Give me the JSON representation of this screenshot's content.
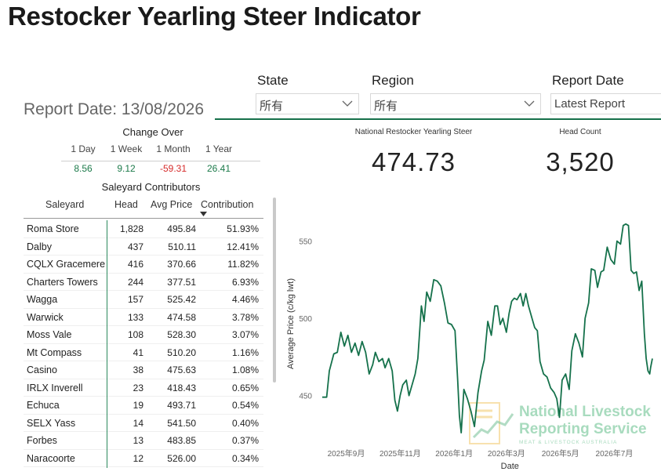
{
  "title": "Restocker Yearling Steer Indicator",
  "report_date_label": "Report Date: 13/08/2026",
  "filters": {
    "state": {
      "label": "State",
      "value": "所有"
    },
    "region": {
      "label": "Region",
      "value": "所有"
    },
    "report_date": {
      "label": "Report Date",
      "value": "Latest Report"
    }
  },
  "kpis": {
    "indicator": {
      "label": "National Restocker Yearling Steer",
      "value": "474.73"
    },
    "head_count": {
      "label": "Head Count",
      "value": "3,520"
    }
  },
  "change_over": {
    "title": "Change Over",
    "periods": [
      {
        "label": "1 Day",
        "value": "8.56",
        "status": "positive"
      },
      {
        "label": "1 Week",
        "value": "9.12",
        "status": "positive"
      },
      {
        "label": "1 Month",
        "value": "-59.31",
        "status": "negative"
      },
      {
        "label": "1 Year",
        "value": "26.41",
        "status": "positive"
      }
    ]
  },
  "contributors": {
    "title": "Saleyard Contributors",
    "columns": [
      "Saleyard",
      "Head",
      "Avg Price",
      "Contribution"
    ],
    "rows": [
      {
        "saleyard": "Roma Store",
        "head": "1,828",
        "avg_price": "495.84",
        "contribution": "51.93%"
      },
      {
        "saleyard": "Dalby",
        "head": "437",
        "avg_price": "510.11",
        "contribution": "12.41%"
      },
      {
        "saleyard": "CQLX Gracemere",
        "head": "416",
        "avg_price": "370.66",
        "contribution": "11.82%"
      },
      {
        "saleyard": "Charters Towers",
        "head": "244",
        "avg_price": "377.51",
        "contribution": "6.93%"
      },
      {
        "saleyard": "Wagga",
        "head": "157",
        "avg_price": "525.42",
        "contribution": "4.46%"
      },
      {
        "saleyard": "Warwick",
        "head": "133",
        "avg_price": "474.58",
        "contribution": "3.78%"
      },
      {
        "saleyard": "Moss Vale",
        "head": "108",
        "avg_price": "528.30",
        "contribution": "3.07%"
      },
      {
        "saleyard": "Mt Compass",
        "head": "41",
        "avg_price": "510.20",
        "contribution": "1.16%"
      },
      {
        "saleyard": "Casino",
        "head": "38",
        "avg_price": "475.63",
        "contribution": "1.08%"
      },
      {
        "saleyard": "IRLX Inverell",
        "head": "23",
        "avg_price": "418.43",
        "contribution": "0.65%"
      },
      {
        "saleyard": "Echuca",
        "head": "19",
        "avg_price": "493.71",
        "contribution": "0.54%"
      },
      {
        "saleyard": "SELX Yass",
        "head": "14",
        "avg_price": "541.50",
        "contribution": "0.40%"
      },
      {
        "saleyard": "Forbes",
        "head": "13",
        "avg_price": "483.85",
        "contribution": "0.37%"
      },
      {
        "saleyard": "Naracoorte",
        "head": "12",
        "avg_price": "526.00",
        "contribution": "0.34%"
      }
    ]
  },
  "colors": {
    "accent": "#16704a",
    "positive": "#1c7a4a",
    "negative": "#d62b2b",
    "line": "#15714b"
  },
  "watermark": {
    "line1": "National Livestock",
    "line2": "Reporting Service",
    "line3": "MEAT & LIVESTOCK AUSTRALIA"
  },
  "chart_data": {
    "type": "line",
    "xlabel": "Date",
    "ylabel": "Average Price (c/kg lwt)",
    "x_ticks": [
      "2025年9月",
      "2025年11月",
      "2026年1月",
      "2026年3月",
      "2026年5月",
      "2026年7月"
    ],
    "y_ticks": [
      450,
      500,
      550
    ],
    "ylim": [
      423,
      570
    ],
    "xlim": [
      "2025-08-05",
      "2026-08-13"
    ],
    "series": [
      {
        "values": [
          [
            "2025-08-05",
            449
          ],
          [
            "2025-08-10",
            449
          ],
          [
            "2025-08-13",
            466
          ],
          [
            "2025-08-18",
            477
          ],
          [
            "2025-08-22",
            478
          ],
          [
            "2025-08-26",
            491
          ],
          [
            "2025-08-30",
            482
          ],
          [
            "2025-09-03",
            489
          ],
          [
            "2025-09-07",
            478
          ],
          [
            "2025-09-11",
            484
          ],
          [
            "2025-09-15",
            476
          ],
          [
            "2025-09-19",
            485
          ],
          [
            "2025-09-23",
            478
          ],
          [
            "2025-09-27",
            464
          ],
          [
            "2025-10-01",
            470
          ],
          [
            "2025-10-04",
            478
          ],
          [
            "2025-10-08",
            472
          ],
          [
            "2025-10-12",
            474
          ],
          [
            "2025-10-15",
            468
          ],
          [
            "2025-10-19",
            474
          ],
          [
            "2025-10-23",
            466
          ],
          [
            "2025-10-26",
            447
          ],
          [
            "2025-10-29",
            440
          ],
          [
            "2025-11-01",
            450
          ],
          [
            "2025-11-04",
            457
          ],
          [
            "2025-11-08",
            460
          ],
          [
            "2025-11-11",
            450
          ],
          [
            "2025-11-14",
            456
          ],
          [
            "2025-11-18",
            464
          ],
          [
            "2025-11-21",
            474
          ],
          [
            "2025-11-25",
            508
          ],
          [
            "2025-11-28",
            498
          ],
          [
            "2025-12-01",
            517
          ],
          [
            "2025-12-05",
            511
          ],
          [
            "2025-12-09",
            525
          ],
          [
            "2025-12-13",
            524
          ],
          [
            "2025-12-17",
            521
          ],
          [
            "2025-12-21",
            510
          ],
          [
            "2025-12-25",
            497
          ],
          [
            "2025-12-29",
            496
          ],
          [
            "2026-01-02",
            492
          ],
          [
            "2026-01-05",
            460
          ],
          [
            "2026-01-07",
            437
          ],
          [
            "2026-01-09",
            426
          ],
          [
            "2026-01-12",
            454
          ],
          [
            "2026-01-16",
            448
          ],
          [
            "2026-01-20",
            440
          ],
          [
            "2026-01-24",
            430
          ],
          [
            "2026-01-28",
            452
          ],
          [
            "2026-02-01",
            466
          ],
          [
            "2026-02-04",
            473
          ],
          [
            "2026-02-08",
            498
          ],
          [
            "2026-02-12",
            489
          ],
          [
            "2026-02-16",
            508
          ],
          [
            "2026-02-19",
            508
          ],
          [
            "2026-02-22",
            496
          ],
          [
            "2026-02-25",
            500
          ],
          [
            "2026-03-01",
            491
          ],
          [
            "2026-03-04",
            503
          ],
          [
            "2026-03-07",
            511
          ],
          [
            "2026-03-10",
            513
          ],
          [
            "2026-03-13",
            512
          ],
          [
            "2026-03-17",
            516
          ],
          [
            "2026-03-20",
            508
          ],
          [
            "2026-03-23",
            516
          ],
          [
            "2026-03-26",
            508
          ],
          [
            "2026-03-30",
            500
          ],
          [
            "2026-04-02",
            494
          ],
          [
            "2026-04-05",
            492
          ],
          [
            "2026-04-08",
            472
          ],
          [
            "2026-04-12",
            464
          ],
          [
            "2026-04-16",
            462
          ],
          [
            "2026-04-20",
            455
          ],
          [
            "2026-04-24",
            452
          ],
          [
            "2026-04-27",
            448
          ],
          [
            "2026-04-30",
            436
          ],
          [
            "2026-05-03",
            460
          ],
          [
            "2026-05-07",
            464
          ],
          [
            "2026-05-11",
            454
          ],
          [
            "2026-05-14",
            479
          ],
          [
            "2026-05-18",
            490
          ],
          [
            "2026-05-22",
            484
          ],
          [
            "2026-05-26",
            475
          ],
          [
            "2026-05-29",
            500
          ],
          [
            "2026-06-02",
            510
          ],
          [
            "2026-06-05",
            532
          ],
          [
            "2026-06-09",
            531
          ],
          [
            "2026-06-12",
            520
          ],
          [
            "2026-06-16",
            530
          ],
          [
            "2026-06-19",
            531
          ],
          [
            "2026-06-23",
            546
          ],
          [
            "2026-06-27",
            538
          ],
          [
            "2026-07-01",
            535
          ],
          [
            "2026-07-04",
            550
          ],
          [
            "2026-07-08",
            548
          ],
          [
            "2026-07-11",
            560
          ],
          [
            "2026-07-14",
            561
          ],
          [
            "2026-07-17",
            560
          ],
          [
            "2026-07-20",
            531
          ],
          [
            "2026-07-23",
            529
          ],
          [
            "2026-07-26",
            530
          ],
          [
            "2026-07-29",
            518
          ],
          [
            "2026-08-01",
            524
          ],
          [
            "2026-08-04",
            490
          ],
          [
            "2026-08-06",
            474
          ],
          [
            "2026-08-08",
            466
          ],
          [
            "2026-08-10",
            464
          ],
          [
            "2026-08-11",
            468
          ],
          [
            "2026-08-13",
            474
          ]
        ]
      }
    ]
  }
}
